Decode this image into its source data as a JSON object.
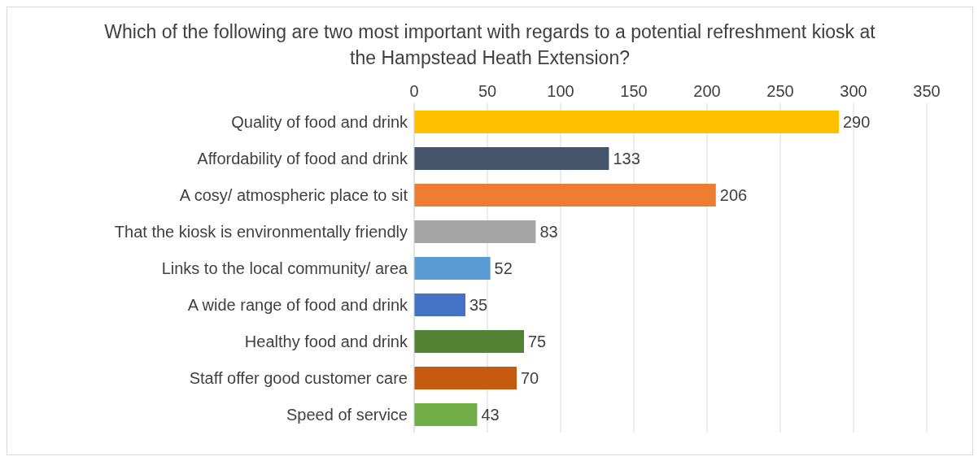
{
  "chart_data": {
    "type": "bar",
    "orientation": "horizontal",
    "title": "Which of the following are two most important with regards to a potential refreshment kiosk at the Hampstead Heath Extension?",
    "categories": [
      "Quality of food and drink",
      "Affordability of food and drink",
      "A cosy/ atmospheric place to sit",
      "That the kiosk is environmentally friendly",
      "Links to the local community/ area",
      "A wide range of food and drink",
      "Healthy food and drink",
      "Staff offer good customer care",
      "Speed of service"
    ],
    "values": [
      290,
      133,
      206,
      83,
      52,
      35,
      75,
      70,
      43
    ],
    "colors": [
      "#ffc000",
      "#44546a",
      "#ed7d31",
      "#a5a5a5",
      "#5b9bd5",
      "#4472c4",
      "#548235",
      "#c55a11",
      "#70ad47"
    ],
    "xlim": [
      0,
      350
    ],
    "xticks": [
      0,
      50,
      100,
      150,
      200,
      250,
      300,
      350
    ],
    "grid": "x",
    "data_labels": true,
    "legend": false
  }
}
